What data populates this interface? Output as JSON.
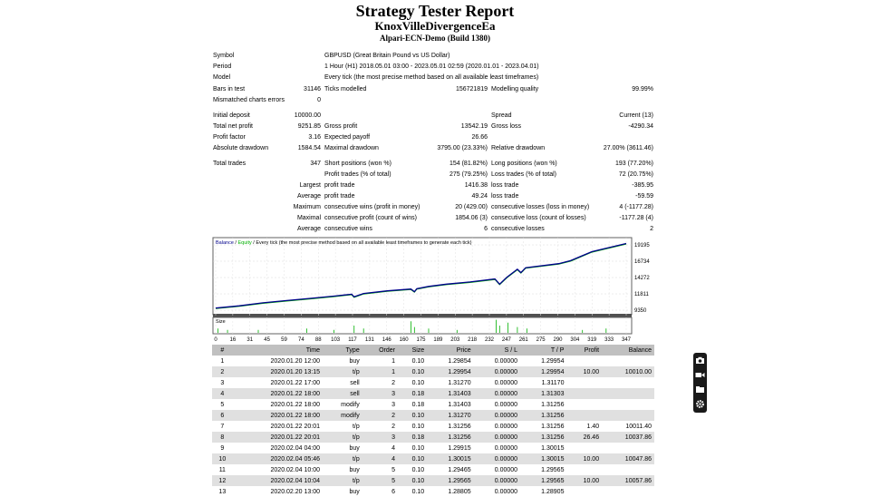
{
  "header": {
    "title": "Strategy Tester Report",
    "ea_name": "KnoxVilleDivergenceEa",
    "broker": "Alpari-ECN-Demo (Build 1380)"
  },
  "summary": {
    "symbol_label": "Symbol",
    "symbol_value": "GBPUSD (Great Britain Pound vs US Dollar)",
    "period_label": "Period",
    "period_value": "1 Hour (H1) 2018.05.01 03:00 - 2023.05.01 02:59 (2020.01.01 - 2023.04.01)",
    "model_label": "Model",
    "model_value": "Every tick (the most precise method based on all available least timeframes)",
    "bars_label": "Bars in test",
    "bars_value": "31146",
    "ticks_label": "Ticks modelled",
    "ticks_value": "156721819",
    "quality_label": "Modelling quality",
    "quality_value": "99.99%",
    "mismatch_label": "Mismatched charts errors",
    "mismatch_value": "0",
    "deposit_label": "Initial deposit",
    "deposit_value": "10000.00",
    "spread_label": "Spread",
    "spread_value": "Current (13)",
    "netprofit_label": "Total net profit",
    "netprofit_value": "9251.85",
    "grossprofit_label": "Gross profit",
    "grossprofit_value": "13542.19",
    "grossloss_label": "Gross loss",
    "grossloss_value": "-4290.34",
    "pf_label": "Profit factor",
    "pf_value": "3.16",
    "payoff_label": "Expected payoff",
    "payoff_value": "26.66",
    "absdd_label": "Absolute drawdown",
    "absdd_value": "1584.54",
    "maxdd_label": "Maximal drawdown",
    "maxdd_value": "3795.00 (23.33%)",
    "reldd_label": "Relative drawdown",
    "reldd_value": "27.00% (3611.46)",
    "trades_label": "Total trades",
    "trades_value": "347",
    "short_label": "Short positions (won %)",
    "short_value": "154 (81.82%)",
    "long_label": "Long positions (won %)",
    "long_value": "193 (77.20%)",
    "pt_label": "Profit trades (% of total)",
    "pt_value": "275 (79.25%)",
    "lt_label": "Loss trades (% of total)",
    "lt_value": "72 (20.75%)",
    "largest_label": "Largest",
    "largest_profit_label": "profit trade",
    "largest_profit_value": "1416.38",
    "largest_loss_label": "loss trade",
    "largest_loss_value": "-385.95",
    "average_label": "Average",
    "average_profit_label": "profit trade",
    "average_profit_value": "49.24",
    "average_loss_label": "loss trade",
    "average_loss_value": "-59.59",
    "maximum_label": "Maximum",
    "max_cw_label": "consecutive wins (profit in money)",
    "max_cw_value": "20 (429.00)",
    "max_cl_label": "consecutive losses (loss in money)",
    "max_cl_value": "4 (-1177.28)",
    "maximal_label": "Maximal",
    "maximal_cp_label": "consecutive profit (count of wins)",
    "maximal_cp_value": "1854.06 (3)",
    "maximal_cl_label": "consecutive loss (count of losses)",
    "maximal_cl_value": "-1177.28 (4)",
    "avgc_label": "Average",
    "avg_cw_label": "consecutive wins",
    "avg_cw_value": "6",
    "avg_cl_label": "consecutive losses",
    "avg_cl_value": "2"
  },
  "chart_data": {
    "type": "line",
    "legend": {
      "balance": "Balance",
      "sep1": " / ",
      "equity": "Equity",
      "sep2": " / ",
      "rest": "Every tick (the most precise method based on all available least timeframes to generate each tick)"
    },
    "x_ticks": [
      "0",
      "16",
      "31",
      "45",
      "59",
      "74",
      "88",
      "103",
      "117",
      "131",
      "146",
      "160",
      "175",
      "189",
      "203",
      "218",
      "232",
      "247",
      "261",
      "275",
      "290",
      "304",
      "319",
      "333",
      "347"
    ],
    "y_ticks": [
      "19195",
      "16734",
      "14272",
      "11811",
      "9350"
    ],
    "ylim": [
      9350,
      19195
    ],
    "xlim": [
      0,
      347
    ],
    "size_label": "Size",
    "colors": {
      "balance": "#00008b",
      "equity": "#00b000",
      "size": "#00b000"
    },
    "balance": [
      [
        0,
        10000
      ],
      [
        20,
        10300
      ],
      [
        40,
        10700
      ],
      [
        60,
        11000
      ],
      [
        80,
        11300
      ],
      [
        100,
        11600
      ],
      [
        115,
        11850
      ],
      [
        117,
        11500
      ],
      [
        125,
        11950
      ],
      [
        145,
        12300
      ],
      [
        165,
        12550
      ],
      [
        168,
        12200
      ],
      [
        170,
        12600
      ],
      [
        180,
        12900
      ],
      [
        195,
        13200
      ],
      [
        215,
        13500
      ],
      [
        236,
        13900
      ],
      [
        240,
        13200
      ],
      [
        246,
        14100
      ],
      [
        255,
        15200
      ],
      [
        258,
        14750
      ],
      [
        262,
        15400
      ],
      [
        290,
        15950
      ],
      [
        300,
        16350
      ],
      [
        318,
        17550
      ],
      [
        330,
        18000
      ],
      [
        347,
        18650
      ]
    ],
    "equity_dips": [
      [
        0.36,
        0.26
      ],
      [
        0.45,
        0.27
      ],
      [
        0.61,
        0.53
      ],
      [
        0.83,
        0.76
      ]
    ],
    "size_bars": [
      [
        2,
        0.3
      ],
      [
        10,
        0.2
      ],
      [
        36,
        0.2
      ],
      [
        77,
        0.3
      ],
      [
        100,
        0.2
      ],
      [
        117,
        0.5
      ],
      [
        125,
        0.3
      ],
      [
        165,
        0.8
      ],
      [
        168,
        0.4
      ],
      [
        180,
        0.3
      ],
      [
        204,
        0.2
      ],
      [
        237,
        0.9
      ],
      [
        240,
        0.5
      ],
      [
        247,
        0.7
      ],
      [
        255,
        0.4
      ],
      [
        263,
        0.3
      ],
      [
        310,
        0.2
      ],
      [
        330,
        0.3
      ]
    ]
  },
  "deals": {
    "headers": [
      "#",
      "Time",
      "Type",
      "Order",
      "Size",
      "Price",
      "S / L",
      "T / P",
      "Profit",
      "Balance"
    ],
    "rows": [
      [
        "1",
        "2020.01.20 12:00",
        "buy",
        "1",
        "0.10",
        "1.29854",
        "0.00000",
        "1.29954",
        "",
        ""
      ],
      [
        "2",
        "2020.01.20 13:15",
        "t/p",
        "1",
        "0.10",
        "1.29954",
        "0.00000",
        "1.29954",
        "10.00",
        "10010.00"
      ],
      [
        "3",
        "2020.01.22 17:00",
        "sell",
        "2",
        "0.10",
        "1.31270",
        "0.00000",
        "1.31170",
        "",
        ""
      ],
      [
        "4",
        "2020.01.22 18:00",
        "sell",
        "3",
        "0.18",
        "1.31403",
        "0.00000",
        "1.31303",
        "",
        ""
      ],
      [
        "5",
        "2020.01.22 18:00",
        "modify",
        "3",
        "0.18",
        "1.31403",
        "0.00000",
        "1.31256",
        "",
        ""
      ],
      [
        "6",
        "2020.01.22 18:00",
        "modify",
        "2",
        "0.10",
        "1.31270",
        "0.00000",
        "1.31256",
        "",
        ""
      ],
      [
        "7",
        "2020.01.22 20:01",
        "t/p",
        "2",
        "0.10",
        "1.31256",
        "0.00000",
        "1.31256",
        "1.40",
        "10011.40"
      ],
      [
        "8",
        "2020.01.22 20:01",
        "t/p",
        "3",
        "0.18",
        "1.31256",
        "0.00000",
        "1.31256",
        "26.46",
        "10037.86"
      ],
      [
        "9",
        "2020.02.04 04:00",
        "buy",
        "4",
        "0.10",
        "1.29915",
        "0.00000",
        "1.30015",
        "",
        ""
      ],
      [
        "10",
        "2020.02.04 05:46",
        "t/p",
        "4",
        "0.10",
        "1.30015",
        "0.00000",
        "1.30015",
        "10.00",
        "10047.86"
      ],
      [
        "11",
        "2020.02.04 10:00",
        "buy",
        "5",
        "0.10",
        "1.29465",
        "0.00000",
        "1.29565",
        "",
        ""
      ],
      [
        "12",
        "2020.02.04 10:04",
        "t/p",
        "5",
        "0.10",
        "1.29565",
        "0.00000",
        "1.29565",
        "10.00",
        "10057.86"
      ],
      [
        "13",
        "2020.02.20 13:00",
        "buy",
        "6",
        "0.10",
        "1.28805",
        "0.00000",
        "1.28905",
        "",
        ""
      ]
    ]
  },
  "sidebar": {
    "icons": [
      "camera-icon",
      "video-icon",
      "folder-icon",
      "settings-icon"
    ]
  }
}
